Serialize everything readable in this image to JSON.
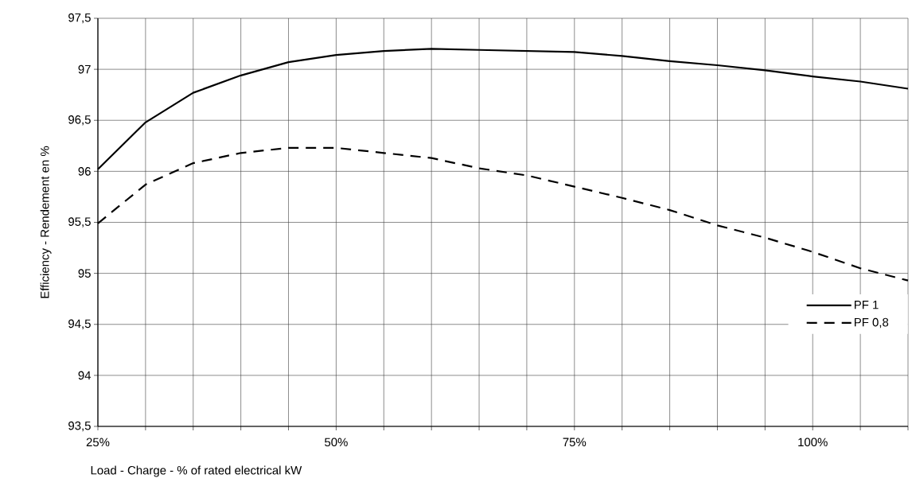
{
  "chart_data": {
    "type": "line",
    "xlabel": "Load - Charge - % of rated electrical kW",
    "ylabel": "Efficiency - Rendement en %",
    "x": [
      25,
      30,
      35,
      40,
      45,
      50,
      55,
      60,
      65,
      70,
      75,
      80,
      85,
      90,
      95,
      100,
      105,
      110
    ],
    "series": [
      {
        "name": "PF 1",
        "color": "#000000",
        "line_style": "solid",
        "values": [
          96.02,
          96.48,
          96.77,
          96.94,
          97.07,
          97.14,
          97.18,
          97.2,
          97.19,
          97.18,
          97.17,
          97.13,
          97.08,
          97.04,
          96.99,
          96.93,
          96.88,
          96.81
        ]
      },
      {
        "name": "PF 0,8",
        "color": "#000000",
        "line_style": "dashed",
        "values": [
          95.49,
          95.87,
          96.08,
          96.18,
          96.23,
          96.23,
          96.18,
          96.13,
          96.03,
          95.96,
          95.85,
          95.74,
          95.62,
          95.47,
          95.35,
          95.21,
          95.05,
          94.93
        ]
      }
    ],
    "xlim": [
      25,
      110
    ],
    "xticks": [
      {
        "value": 25,
        "label": "25%"
      },
      {
        "value": 30,
        "label": null
      },
      {
        "value": 35,
        "label": null
      },
      {
        "value": 40,
        "label": null
      },
      {
        "value": 45,
        "label": null
      },
      {
        "value": 50,
        "label": "50%"
      },
      {
        "value": 55,
        "label": null
      },
      {
        "value": 60,
        "label": null
      },
      {
        "value": 65,
        "label": null
      },
      {
        "value": 70,
        "label": null
      },
      {
        "value": 75,
        "label": "75%"
      },
      {
        "value": 80,
        "label": null
      },
      {
        "value": 85,
        "label": null
      },
      {
        "value": 90,
        "label": null
      },
      {
        "value": 95,
        "label": null
      },
      {
        "value": 100,
        "label": "100%"
      },
      {
        "value": 105,
        "label": null
      },
      {
        "value": 110,
        "label": null
      }
    ],
    "ylim": [
      93.5,
      97.5
    ],
    "yticks": [
      {
        "value": 93.5,
        "label": "93,5"
      },
      94,
      {
        "value": 94.5,
        "label": "94,5"
      },
      95,
      {
        "value": 95.5,
        "label": "95,5"
      },
      96,
      {
        "value": 96.5,
        "label": "96,5"
      },
      97,
      {
        "value": 97.5,
        "label": "97,5"
      }
    ],
    "grid": true,
    "legend": "right",
    "marker": "none"
  }
}
